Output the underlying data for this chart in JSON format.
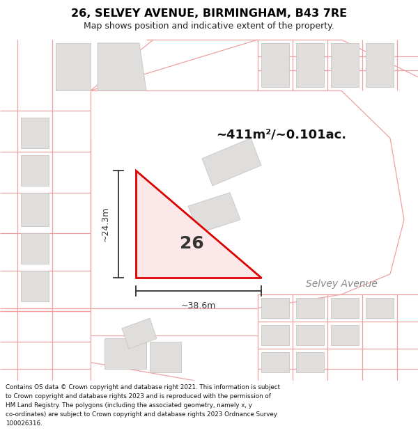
{
  "title": "26, SELVEY AVENUE, BIRMINGHAM, B43 7RE",
  "subtitle": "Map shows position and indicative extent of the property.",
  "area_text": "~411m²/~0.101ac.",
  "plot_number": "26",
  "street_label": "Selvey Avenue",
  "dim_width": "~38.6m",
  "dim_height": "~24.3m",
  "footer_lines": [
    "Contains OS data © Crown copyright and database right 2021. This information is subject",
    "to Crown copyright and database rights 2023 and is reproduced with the permission of",
    "HM Land Registry. The polygons (including the associated geometry, namely x, y",
    "co-ordinates) are subject to Crown copyright and database rights 2023 Ordnance Survey",
    "100026316."
  ],
  "bg_color": "#ffffff",
  "map_bg": "#ffffff",
  "plot_fill": "#fce8e8",
  "plot_edge": "#dd0000",
  "road_color": "#f0a0a0",
  "building_fill": "#e0dedd",
  "building_edge": "#c8c5c2"
}
